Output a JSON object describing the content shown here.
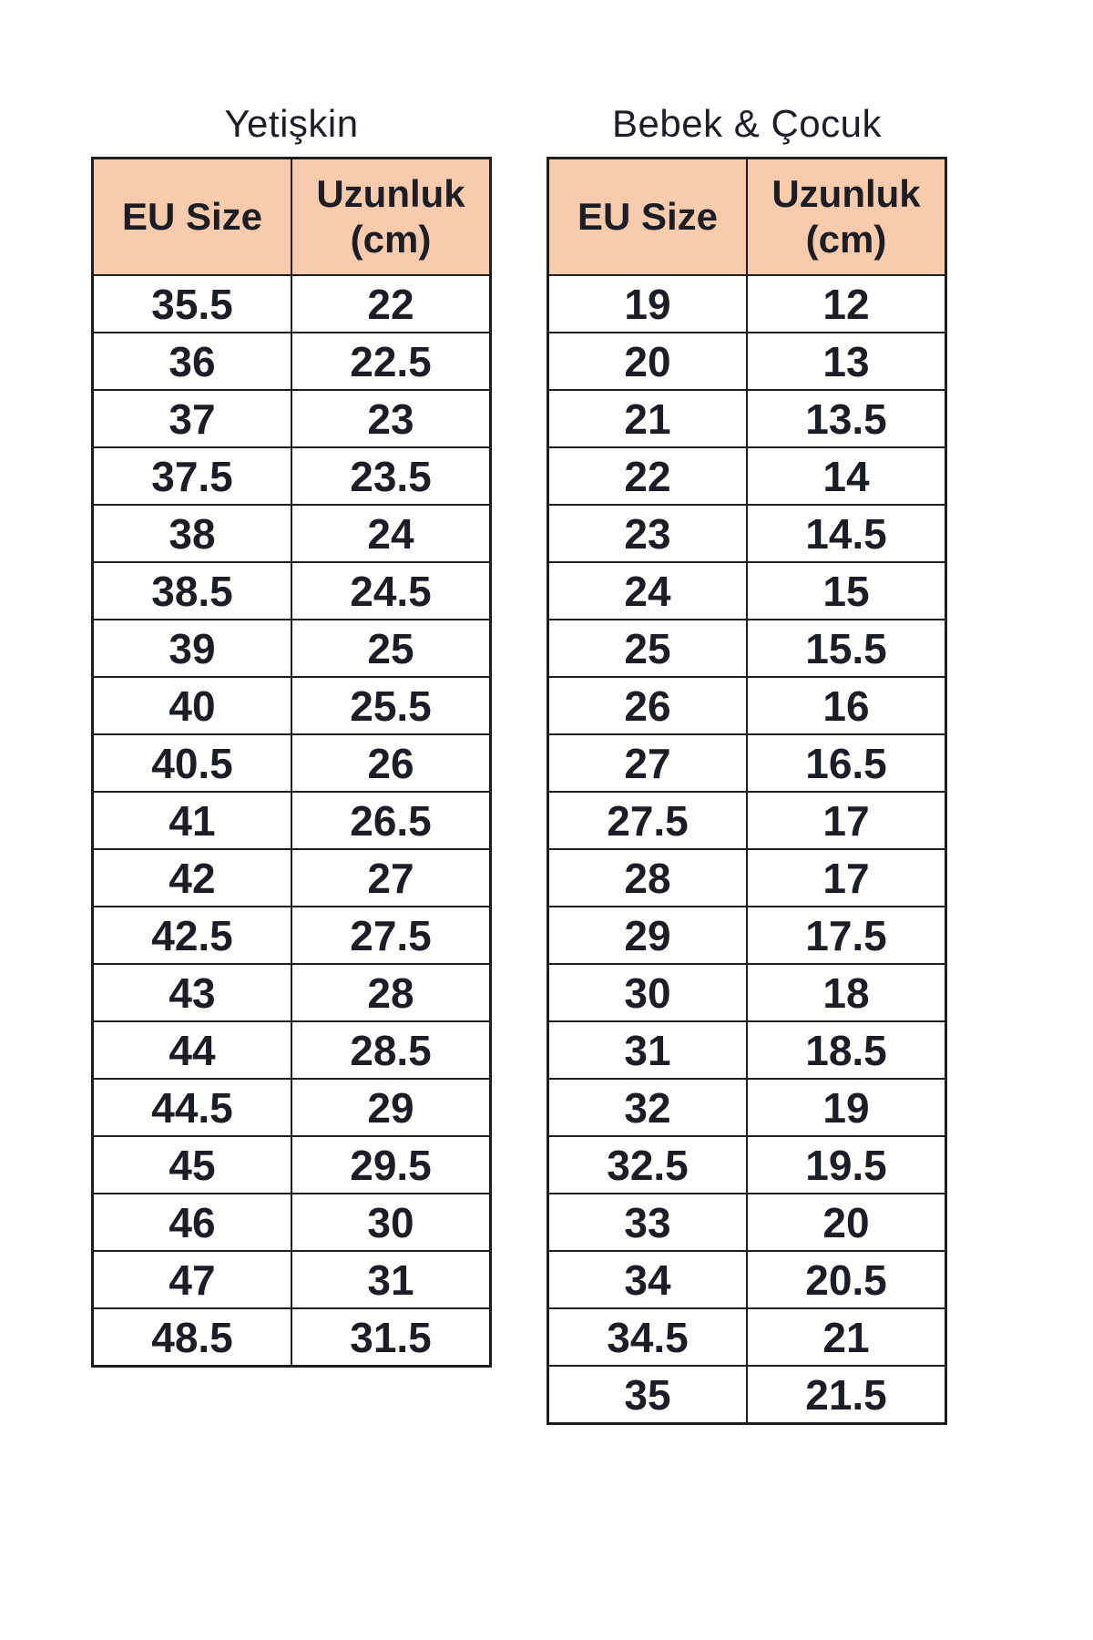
{
  "colors": {
    "header_fill": "#F8CBAD",
    "border": "#1E1E1E",
    "text": "#1D1D26",
    "background": "#FFFFFF"
  },
  "tables": [
    {
      "title": "Yetişkin",
      "headers": {
        "col1": "EU Size",
        "col2_line1": "Uzunluk",
        "col2_line2": "(cm)"
      },
      "rows": [
        [
          "35.5",
          "22"
        ],
        [
          "36",
          "22.5"
        ],
        [
          "37",
          "23"
        ],
        [
          "37.5",
          "23.5"
        ],
        [
          "38",
          "24"
        ],
        [
          "38.5",
          "24.5"
        ],
        [
          "39",
          "25"
        ],
        [
          "40",
          "25.5"
        ],
        [
          "40.5",
          "26"
        ],
        [
          "41",
          "26.5"
        ],
        [
          "42",
          "27"
        ],
        [
          "42.5",
          "27.5"
        ],
        [
          "43",
          "28"
        ],
        [
          "44",
          "28.5"
        ],
        [
          "44.5",
          "29"
        ],
        [
          "45",
          "29.5"
        ],
        [
          "46",
          "30"
        ],
        [
          "47",
          "31"
        ],
        [
          "48.5",
          "31.5"
        ]
      ]
    },
    {
      "title": "Bebek & Çocuk",
      "headers": {
        "col1": "EU Size",
        "col2_line1": "Uzunluk",
        "col2_line2": "(cm)"
      },
      "rows": [
        [
          "19",
          "12"
        ],
        [
          "20",
          "13"
        ],
        [
          "21",
          "13.5"
        ],
        [
          "22",
          "14"
        ],
        [
          "23",
          "14.5"
        ],
        [
          "24",
          "15"
        ],
        [
          "25",
          "15.5"
        ],
        [
          "26",
          "16"
        ],
        [
          "27",
          "16.5"
        ],
        [
          "27.5",
          "17"
        ],
        [
          "28",
          "17"
        ],
        [
          "29",
          "17.5"
        ],
        [
          "30",
          "18"
        ],
        [
          "31",
          "18.5"
        ],
        [
          "32",
          "19"
        ],
        [
          "32.5",
          "19.5"
        ],
        [
          "33",
          "20"
        ],
        [
          "34",
          "20.5"
        ],
        [
          "34.5",
          "21"
        ],
        [
          "35",
          "21.5"
        ]
      ]
    }
  ],
  "chart_data": [
    {
      "type": "table",
      "title": "Yetişkin",
      "columns": [
        "EU Size",
        "Uzunluk (cm)"
      ],
      "rows": [
        [
          35.5,
          22
        ],
        [
          36,
          22.5
        ],
        [
          37,
          23
        ],
        [
          37.5,
          23.5
        ],
        [
          38,
          24
        ],
        [
          38.5,
          24.5
        ],
        [
          39,
          25
        ],
        [
          40,
          25.5
        ],
        [
          40.5,
          26
        ],
        [
          41,
          26.5
        ],
        [
          42,
          27
        ],
        [
          42.5,
          27.5
        ],
        [
          43,
          28
        ],
        [
          44,
          28.5
        ],
        [
          44.5,
          29
        ],
        [
          45,
          29.5
        ],
        [
          46,
          30
        ],
        [
          47,
          31
        ],
        [
          48.5,
          31.5
        ]
      ]
    },
    {
      "type": "table",
      "title": "Bebek & Çocuk",
      "columns": [
        "EU Size",
        "Uzunluk (cm)"
      ],
      "rows": [
        [
          19,
          12
        ],
        [
          20,
          13
        ],
        [
          21,
          13.5
        ],
        [
          22,
          14
        ],
        [
          23,
          14.5
        ],
        [
          24,
          15
        ],
        [
          25,
          15.5
        ],
        [
          26,
          16
        ],
        [
          27,
          16.5
        ],
        [
          27.5,
          17
        ],
        [
          28,
          17
        ],
        [
          29,
          17.5
        ],
        [
          30,
          18
        ],
        [
          31,
          18.5
        ],
        [
          32,
          19
        ],
        [
          32.5,
          19.5
        ],
        [
          33,
          20
        ],
        [
          34,
          20.5
        ],
        [
          34.5,
          21
        ],
        [
          35,
          21.5
        ]
      ]
    }
  ]
}
